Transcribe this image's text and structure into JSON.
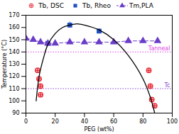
{
  "chart_data": {
    "type": "scatter",
    "x_label": "PEG (wt%)",
    "y_label": "Temperature (°C)",
    "xlim": [
      0,
      100
    ],
    "ylim": [
      90,
      170
    ],
    "xticks": [
      0,
      20,
      40,
      60,
      80,
      100
    ],
    "yticks": [
      90,
      100,
      110,
      120,
      130,
      140,
      150,
      160,
      170
    ],
    "grid": false,
    "legend": "top",
    "series": [
      {
        "name": "Tb, DSC",
        "type": "scatter",
        "marker": "circle-plus",
        "color": "#e8303a",
        "x": [
          8,
          9,
          10,
          10,
          84,
          85,
          86,
          88
        ],
        "values": [
          125,
          118,
          112,
          105,
          125,
          112,
          101,
          96
        ]
      },
      {
        "name": "Tb, Rheo",
        "type": "scatter",
        "marker": "square",
        "color": "#1f4fbf",
        "x": [
          15,
          30,
          50
        ],
        "values": [
          147,
          162,
          157
        ],
        "errors": [
          2,
          2.5,
          2
        ]
      },
      {
        "name": "Tm,PLA",
        "type": "line",
        "marker": "triangle",
        "line_style": "dashed",
        "color": "#6a3dc8",
        "x": [
          0,
          5,
          10,
          15,
          20,
          30,
          40,
          50,
          60,
          70,
          80,
          90
        ],
        "values": [
          151,
          150,
          148,
          147,
          147,
          148,
          148,
          148,
          148,
          149,
          149,
          149
        ]
      },
      {
        "type": "line",
        "line_style": "solid",
        "color": "#000000",
        "x": [
          7,
          9,
          12,
          15,
          20,
          25,
          30,
          35,
          40,
          50,
          60,
          70,
          80,
          85,
          88
        ],
        "values": [
          100,
          120,
          135,
          146,
          155,
          160,
          162,
          163,
          162,
          158,
          150,
          137,
          118,
          103,
          90
        ]
      }
    ],
    "reference_lines": [
      {
        "label": "Tanneal",
        "y": 140,
        "color": "#e040e0",
        "line_style": "dotted"
      },
      {
        "label": "Tc",
        "y": 110,
        "color": "#8a40d0",
        "line_style": "dotted"
      }
    ]
  }
}
